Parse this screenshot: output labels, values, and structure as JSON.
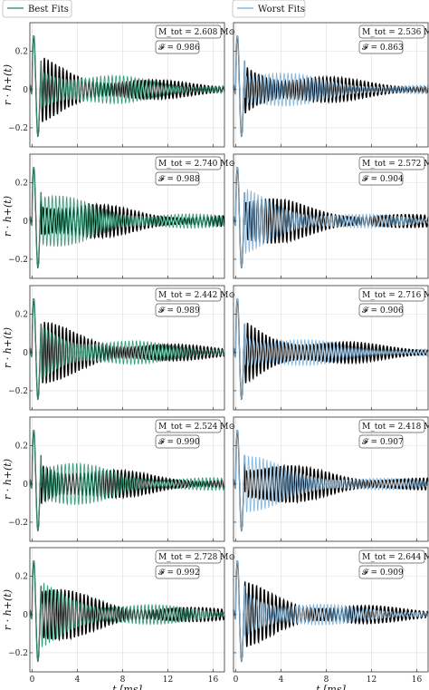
{
  "legend": {
    "best": {
      "label": "Best Fits",
      "color": "#3a9c7c"
    },
    "worst": {
      "label": "Worst Fits",
      "color": "#8ab9dc"
    }
  },
  "chart_data": {
    "type": "line",
    "xlabel": "t [ms]",
    "ylabel": "r · h+(t)",
    "xlim": [
      -0.2,
      17
    ],
    "ylim": [
      -0.3,
      0.35
    ],
    "xticks": [
      0,
      4,
      8,
      12,
      16
    ],
    "yticks": [
      -0.2,
      0,
      0.2
    ],
    "ytick_labels": [
      "−0.2",
      "0",
      "0.2"
    ],
    "grid": true,
    "reference_color": "#000000",
    "columns": [
      "best",
      "worst"
    ],
    "panels": [
      {
        "row": 0,
        "col": "best",
        "mtot_label": "M_tot = 2.608 M⊙",
        "f_label": "𝓕 = 0.986",
        "seed": 1
      },
      {
        "row": 0,
        "col": "worst",
        "mtot_label": "M_tot = 2.536 M⊙",
        "f_label": "𝓕 = 0.863",
        "seed": 2
      },
      {
        "row": 1,
        "col": "best",
        "mtot_label": "M_tot = 2.740 M⊙",
        "f_label": "𝓕 = 0.988",
        "seed": 3
      },
      {
        "row": 1,
        "col": "worst",
        "mtot_label": "M_tot = 2.572 M⊙",
        "f_label": "𝓕 = 0.904",
        "seed": 4
      },
      {
        "row": 2,
        "col": "best",
        "mtot_label": "M_tot = 2.442 M⊙",
        "f_label": "𝓕 = 0.989",
        "seed": 5
      },
      {
        "row": 2,
        "col": "worst",
        "mtot_label": "M_tot = 2.716 M⊙",
        "f_label": "𝓕 = 0.906",
        "seed": 6
      },
      {
        "row": 3,
        "col": "best",
        "mtot_label": "M_tot = 2.524 M⊙",
        "f_label": "𝓕 = 0.990",
        "seed": 7
      },
      {
        "row": 3,
        "col": "worst",
        "mtot_label": "M_tot = 2.418 M⊙",
        "f_label": "𝓕 = 0.907",
        "seed": 8
      },
      {
        "row": 4,
        "col": "best",
        "mtot_label": "M_tot = 2.728 M⊙",
        "f_label": "𝓕 = 0.992",
        "seed": 9
      },
      {
        "row": 4,
        "col": "worst",
        "mtot_label": "M_tot = 2.644 M⊙",
        "f_label": "𝓕 = 0.909",
        "seed": 10
      }
    ]
  }
}
